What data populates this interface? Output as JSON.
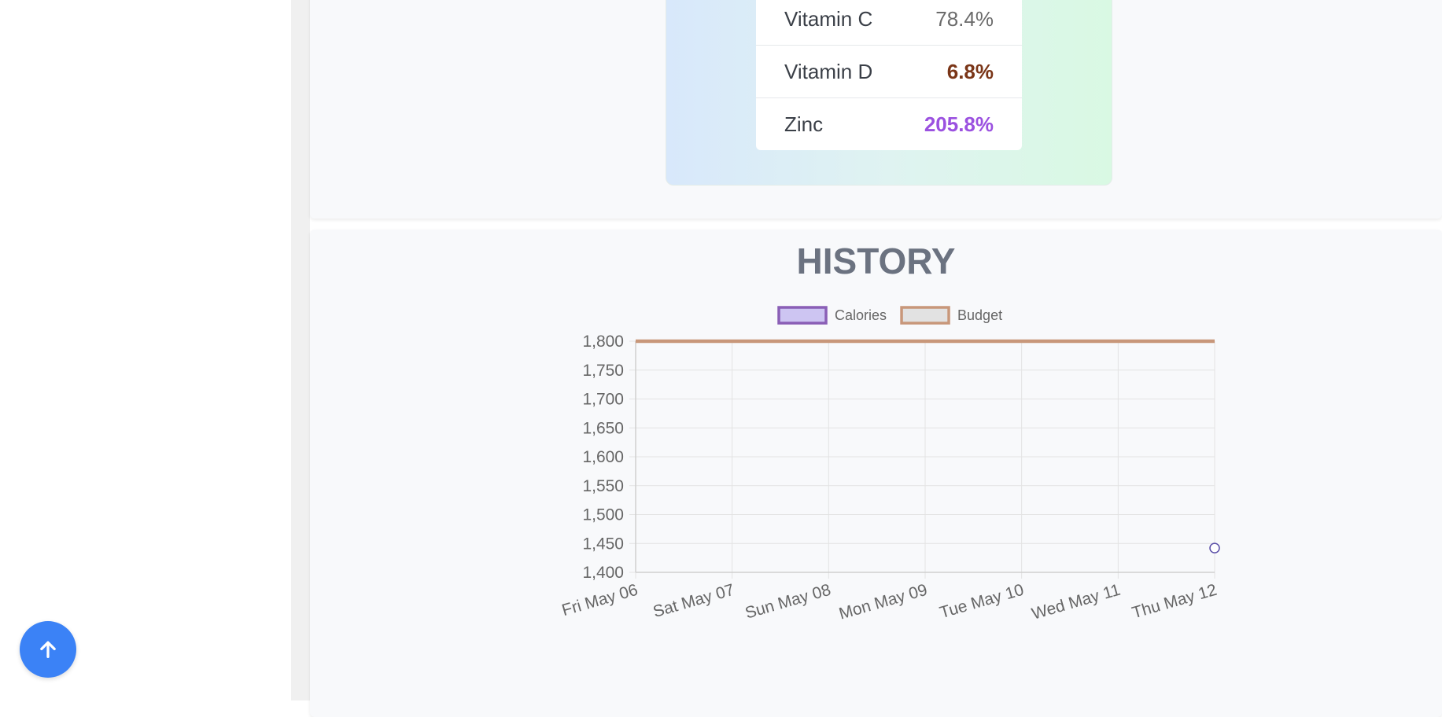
{
  "nutrients": [
    {
      "name": "Vitamin C",
      "value": "78.4%",
      "color": "#6b6b6b",
      "bold": false
    },
    {
      "name": "Vitamin D",
      "value": "6.8%",
      "color": "#7a3517",
      "bold": true
    },
    {
      "name": "Zinc",
      "value": "205.8%",
      "color": "#9b51e0",
      "bold": true
    }
  ],
  "history": {
    "title": "HISTORY"
  },
  "chart_data": {
    "type": "line",
    "x": [
      "Fri May 06",
      "Sat May 07",
      "Sun May 08",
      "Mon May 09",
      "Tue May 10",
      "Wed May 11",
      "Thu May 12"
    ],
    "ylim": [
      1400,
      1800
    ],
    "yticks": [
      "1,800",
      "1,750",
      "1,700",
      "1,650",
      "1,600",
      "1,550",
      "1,500",
      "1,450",
      "1,400"
    ],
    "grid": true,
    "legend_position": "top",
    "series": [
      {
        "name": "Calories",
        "values": [
          null,
          null,
          null,
          null,
          null,
          null,
          1442
        ],
        "color": "#8a5fb6",
        "fill": "#cdc5f2"
      },
      {
        "name": "Budget",
        "values": [
          1800,
          1800,
          1800,
          1800,
          1800,
          1800,
          1800
        ],
        "color": "#c8977a",
        "fill": "#e2e2e2"
      }
    ]
  },
  "scroll_top": {
    "icon": "arrow-up-icon"
  }
}
